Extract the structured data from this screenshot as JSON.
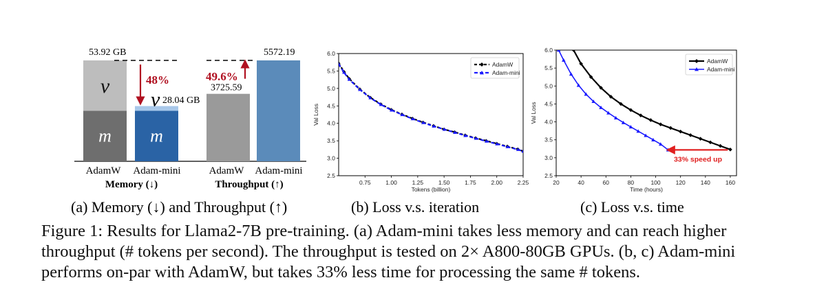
{
  "colors": {
    "v_adamw": "#bdbdbd",
    "m_adamw": "#6e6e6e",
    "v_mini": "#a8c8ea",
    "m_mini": "#2a63a5",
    "tp_adamw": "#9a9a9a",
    "tp_mini": "#5b8bba",
    "arrow_red": "#b01020",
    "adamw_line": "#000000",
    "mini_line": "#1a1aff",
    "speedup_red": "#e02020"
  },
  "panel_a": {
    "memory": {
      "values_gb": {
        "adamw": 53.92,
        "mini": 28.04
      },
      "adamw_split": {
        "m": 26.96,
        "v": 26.96
      },
      "mini_split": {
        "m": 26.96,
        "v": 1.08
      },
      "adamw_label": "53.92 GB",
      "mini_label": "28.04 GB",
      "v_symbol": "v",
      "m_symbol": "m",
      "reduction": "48%",
      "xlabels": [
        "AdamW",
        "Adam-mini"
      ],
      "title": "Memory (↓)"
    },
    "throughput": {
      "values": {
        "adamw": 3725.59,
        "mini": 5572.19
      },
      "adamw_label": "3725.59",
      "mini_label": "5572.19",
      "increase": "49.6%",
      "xlabels": [
        "AdamW",
        "Adam-mini"
      ],
      "title": "Throughput (↑)"
    }
  },
  "chart_data": [
    {
      "type": "line",
      "panel": "b",
      "xlabel": "Tokens (billion)",
      "ylabel": "Val Loss",
      "xlim": [
        0.5,
        2.25
      ],
      "ylim": [
        2.5,
        6.0
      ],
      "xticks": [
        "0.75",
        "1.00",
        "1.25",
        "1.50",
        "1.75",
        "2.00",
        "2.25"
      ],
      "yticks": [
        "2.5",
        "3.0",
        "3.5",
        "4.0",
        "4.5",
        "5.0",
        "5.5",
        "6.0"
      ],
      "legend_position": "top-right",
      "series": [
        {
          "name": "AdamW",
          "marker": "diamond",
          "x": [
            0.5,
            0.55,
            0.6,
            0.7,
            0.8,
            0.9,
            1.0,
            1.1,
            1.2,
            1.3,
            1.4,
            1.5,
            1.6,
            1.7,
            1.8,
            1.9,
            2.0,
            2.1,
            2.2,
            2.25
          ],
          "y": [
            5.72,
            5.48,
            5.28,
            4.98,
            4.74,
            4.55,
            4.39,
            4.26,
            4.14,
            4.03,
            3.93,
            3.83,
            3.75,
            3.66,
            3.58,
            3.5,
            3.42,
            3.34,
            3.26,
            3.2
          ]
        },
        {
          "name": "Adam-mini",
          "marker": "triangle",
          "x": [
            0.5,
            0.55,
            0.6,
            0.7,
            0.8,
            0.9,
            1.0,
            1.1,
            1.2,
            1.3,
            1.4,
            1.5,
            1.6,
            1.7,
            1.8,
            1.9,
            2.0,
            2.1,
            2.2,
            2.25
          ],
          "y": [
            5.7,
            5.46,
            5.26,
            4.97,
            4.73,
            4.54,
            4.38,
            4.25,
            4.13,
            4.02,
            3.92,
            3.83,
            3.74,
            3.65,
            3.57,
            3.49,
            3.41,
            3.33,
            3.25,
            3.2
          ]
        }
      ],
      "caption": "(b) Loss v.s. iteration"
    },
    {
      "type": "line",
      "panel": "c",
      "xlabel": "Time (hours)",
      "ylabel": "Val Loss",
      "xlim": [
        20,
        165
      ],
      "ylim": [
        2.5,
        6.0
      ],
      "xticks": [
        "20",
        "40",
        "60",
        "80",
        "100",
        "120",
        "140",
        "160"
      ],
      "yticks": [
        "2.5",
        "3.0",
        "3.5",
        "4.0",
        "4.5",
        "5.0",
        "5.5",
        "6.0"
      ],
      "legend_position": "top-right",
      "series": [
        {
          "name": "AdamW",
          "marker": "diamond",
          "x": [
            34,
            40,
            48,
            56,
            64,
            72,
            80,
            88,
            96,
            104,
            112,
            120,
            128,
            136,
            144,
            152,
            160
          ],
          "y": [
            6.0,
            5.62,
            5.25,
            4.95,
            4.7,
            4.5,
            4.33,
            4.18,
            4.05,
            3.93,
            3.83,
            3.73,
            3.63,
            3.53,
            3.43,
            3.33,
            3.23
          ]
        },
        {
          "name": "Adam-mini",
          "marker": "triangle",
          "x": [
            22,
            26,
            32,
            38,
            44,
            50,
            56,
            62,
            68,
            74,
            80,
            86,
            92,
            98,
            104,
            110
          ],
          "y": [
            6.0,
            5.72,
            5.33,
            5.02,
            4.77,
            4.57,
            4.4,
            4.25,
            4.11,
            3.98,
            3.86,
            3.74,
            3.62,
            3.5,
            3.38,
            3.22
          ]
        }
      ],
      "annotation": "33% speed up",
      "caption": "(c) Loss v.s. time"
    }
  ],
  "captions": {
    "a": "(a) Memory (↓) and Throughput (↑)",
    "b": "(b) Loss v.s. iteration",
    "c": "(c) Loss v.s. time"
  },
  "figure_caption": "Figure 1: Results for Llama2-7B pre-training. (a) Adam-mini takes less memory and can reach higher throughput (# tokens per second). The throughput is tested on 2× A800-80GB GPUs. (b, c) Adam-mini performs on-par with AdamW, but takes 33% less time for processing the same # tokens."
}
